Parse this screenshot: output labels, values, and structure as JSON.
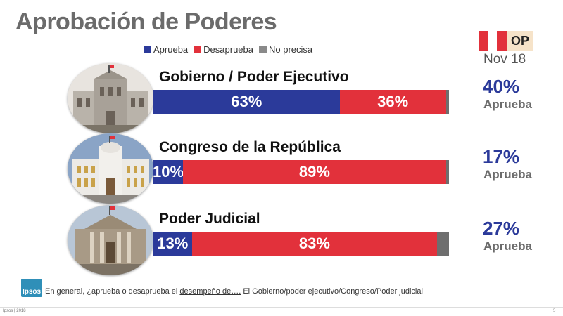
{
  "title": "Aprobación de Poderes",
  "legend": [
    {
      "label": "Aprueba",
      "color": "#2b3a9a"
    },
    {
      "label": "Desaprueba",
      "color": "#e2313b"
    },
    {
      "label": "No precisa",
      "color": "#8a8a8a"
    }
  ],
  "badge": {
    "text": "OP",
    "date": "Nov 18",
    "flag_colors": [
      "#e2313b",
      "#ffffff",
      "#e2313b"
    ]
  },
  "rows": [
    {
      "label": "Gobierno / Poder Ejecutivo",
      "aprueba_label": "63%",
      "desaprueba_label": "36%",
      "side_pct": "40%",
      "side_label": "Aprueba",
      "building_icon": "government-palace-icon"
    },
    {
      "label": "Congreso de la República",
      "aprueba_label": "10%",
      "desaprueba_label": "89%",
      "side_pct": "17%",
      "side_label": "Aprueba",
      "building_icon": "congress-building-icon"
    },
    {
      "label": "Poder Judicial",
      "aprueba_label": "13%",
      "desaprueba_label": "83%",
      "side_pct": "27%",
      "side_label": "Aprueba",
      "building_icon": "palace-of-justice-icon"
    }
  ],
  "chart_data": {
    "type": "bar",
    "orientation": "horizontal",
    "stacked": true,
    "title": "Aprobación de Poderes",
    "categories": [
      "Gobierno / Poder Ejecutivo",
      "Congreso de la República",
      "Poder Judicial"
    ],
    "series": [
      {
        "name": "Aprueba",
        "values": [
          63,
          10,
          13
        ],
        "color": "#2b3a9a"
      },
      {
        "name": "Desaprueba",
        "values": [
          36,
          89,
          83
        ],
        "color": "#e2313b"
      },
      {
        "name": "No precisa",
        "values": [
          1,
          1,
          4
        ],
        "color": "#6e6e6e"
      }
    ],
    "xlim": [
      0,
      100
    ],
    "legend_position": "top",
    "comparison": {
      "label": "Nov 18",
      "values": [
        40,
        17,
        27
      ]
    }
  },
  "footnote": {
    "prefix": "En general, ¿aprueba o desaprueba el ",
    "underlined": "desempeño de….",
    "suffix": " El Gobierno/poder ejecutivo/Congreso/Poder judicial"
  },
  "logo_text": "Ipsos",
  "footer": {
    "left": "Ipsos | 2018",
    "right": "5"
  }
}
